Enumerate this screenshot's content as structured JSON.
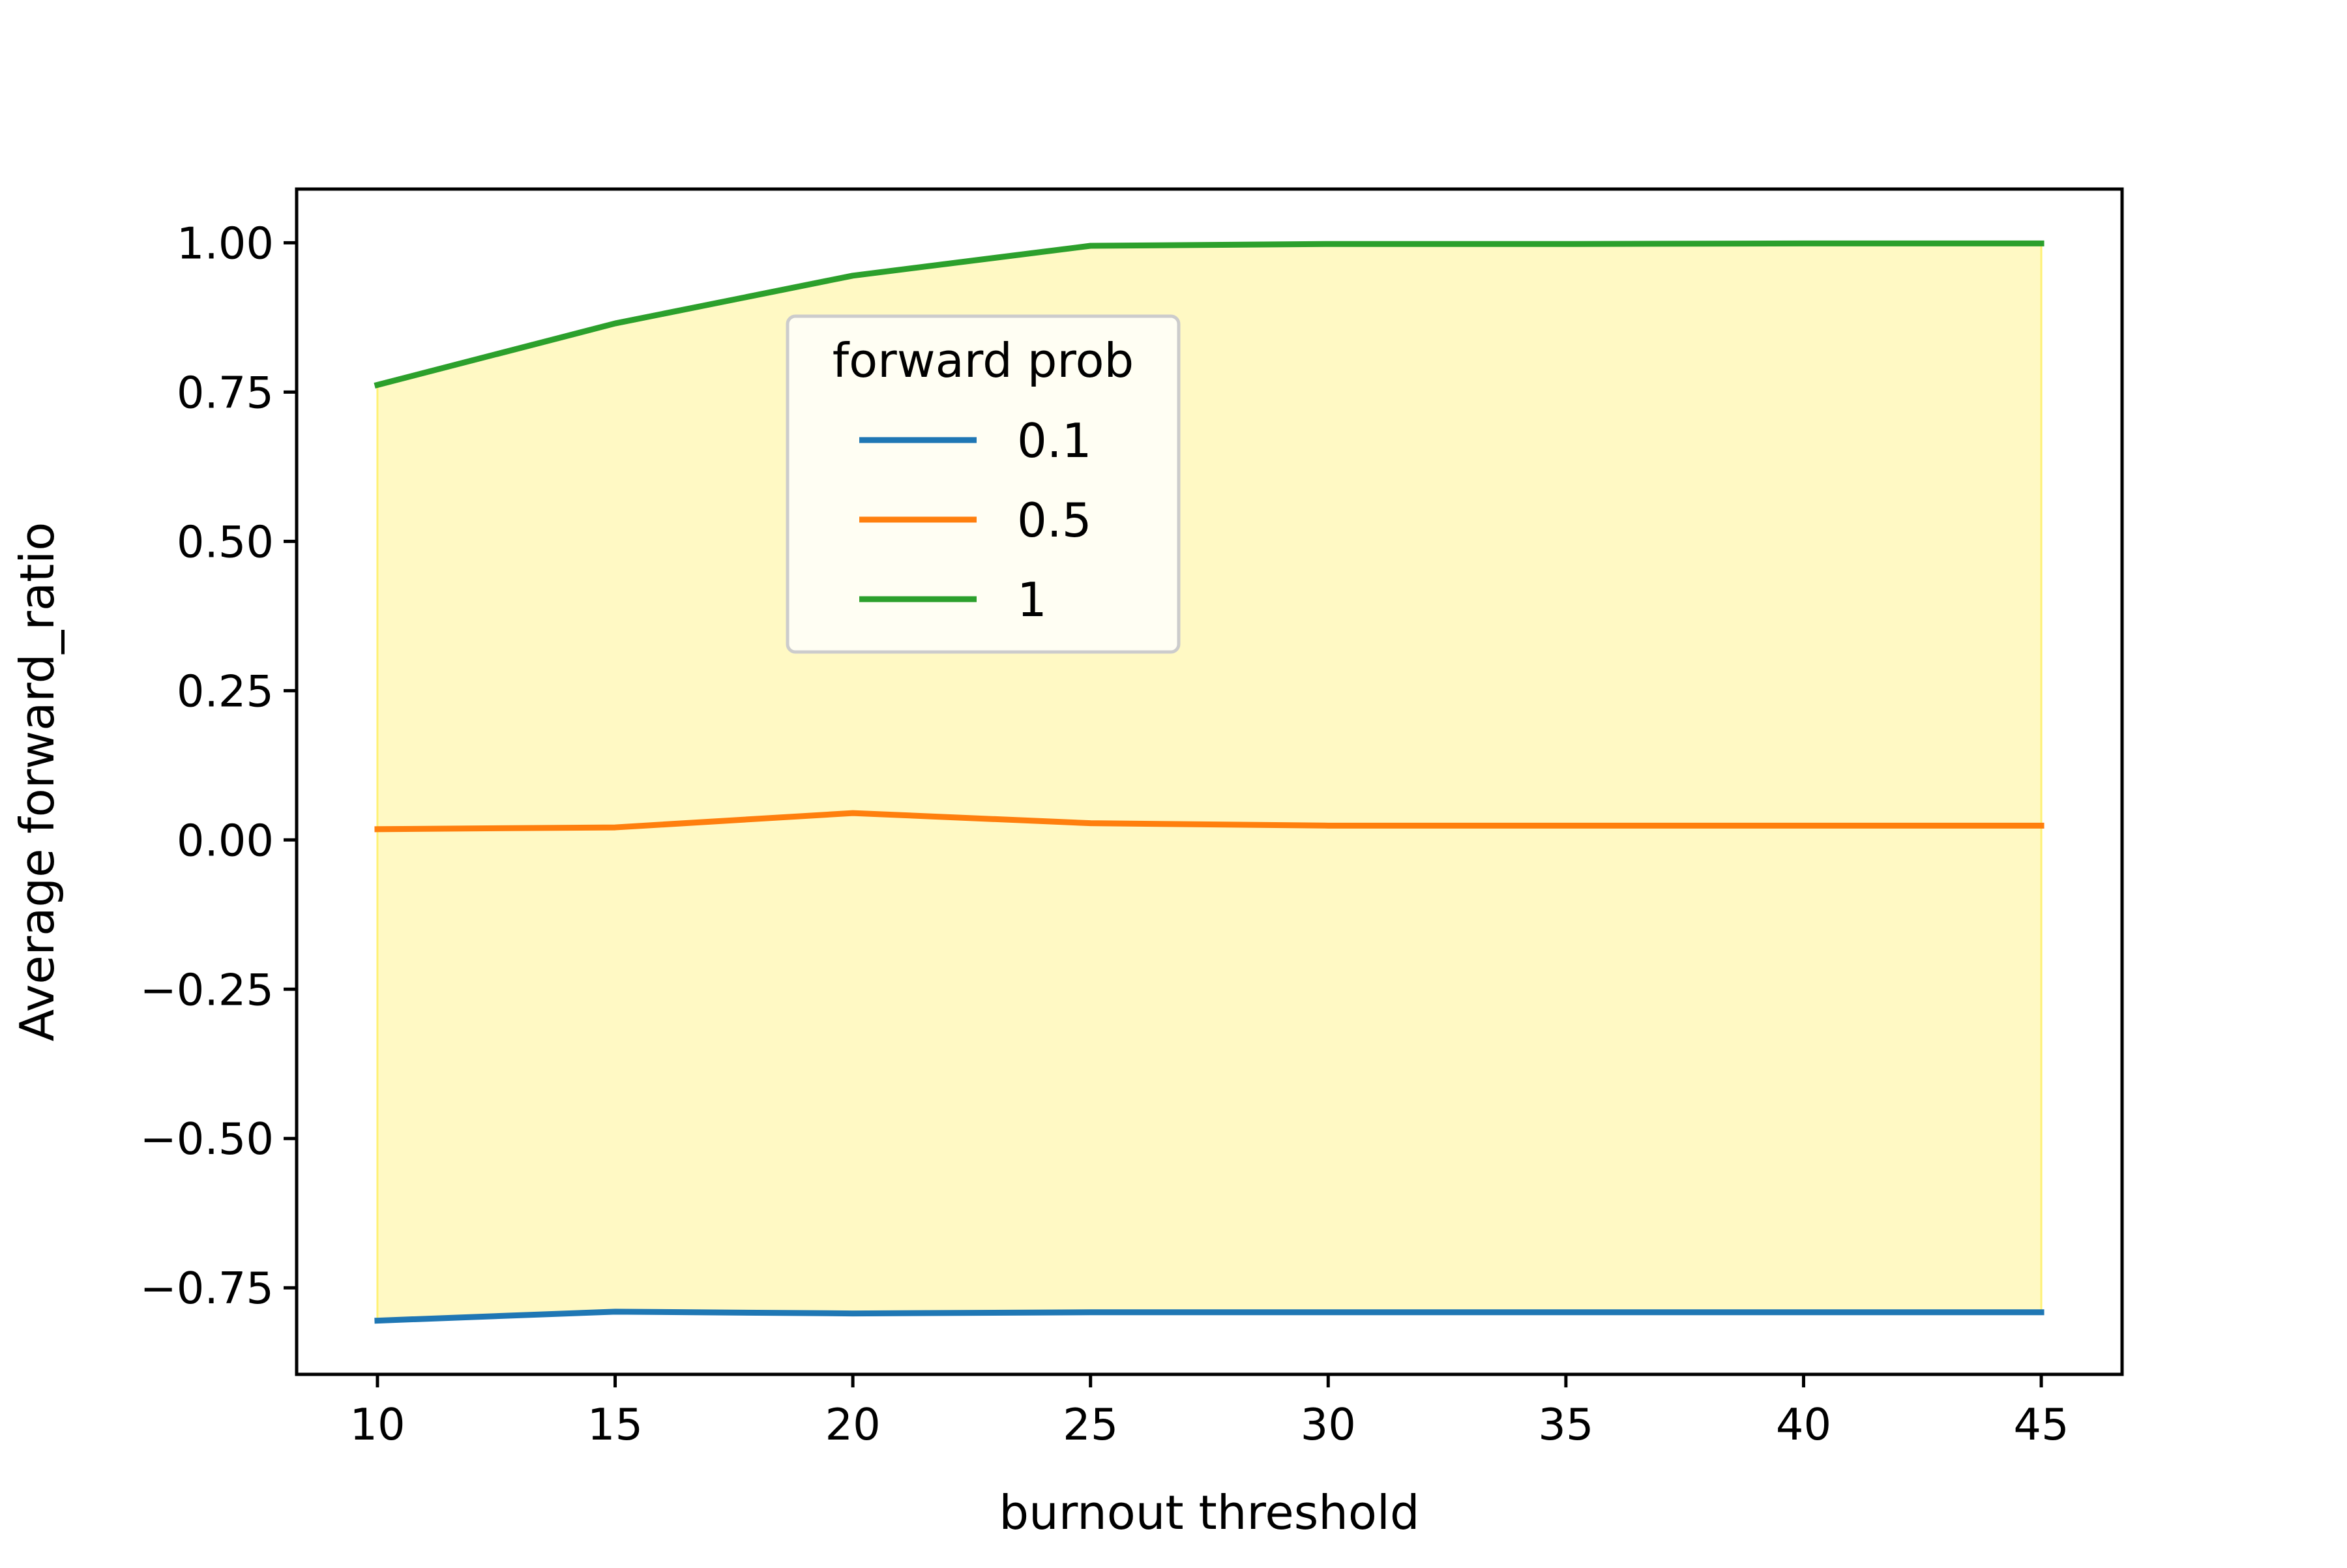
{
  "chart_data": {
    "type": "line",
    "title": "",
    "xlabel": "burnout threshold",
    "ylabel": "Average forward_ratio",
    "x": [
      10,
      15,
      20,
      25,
      30,
      35,
      40,
      45
    ],
    "xlim": [
      8.3,
      46.7
    ],
    "ylim": [
      -0.895,
      1.09
    ],
    "xticks": [
      10,
      15,
      20,
      25,
      30,
      35,
      40,
      45
    ],
    "xtick_labels": [
      "10",
      "15",
      "20",
      "25",
      "30",
      "35",
      "40",
      "45"
    ],
    "yticks": [
      -0.75,
      -0.5,
      -0.25,
      0.0,
      0.25,
      0.5,
      0.75,
      1.0
    ],
    "ytick_labels": [
      "−0.75",
      "−0.50",
      "−0.25",
      "0.00",
      "0.25",
      "0.50",
      "0.75",
      "1.00"
    ],
    "grid": false,
    "fill_between": {
      "lower_series": "0.1",
      "upper_series": "1",
      "color": "#fff9c4",
      "edge_color": "#fff176"
    },
    "legend": {
      "title": "forward prob",
      "placement": "upper center-left"
    },
    "series": [
      {
        "name": "0.1",
        "color": "#1f77b4",
        "values": [
          -0.805,
          -0.79,
          -0.793,
          -0.791,
          -0.791,
          -0.791,
          -0.791,
          -0.791
        ]
      },
      {
        "name": "0.5",
        "color": "#ff7f0e",
        "values": [
          0.018,
          0.021,
          0.045,
          0.028,
          0.024,
          0.024,
          0.024,
          0.024
        ]
      },
      {
        "name": "1",
        "color": "#2ca02c",
        "values": [
          0.762,
          0.865,
          0.945,
          0.995,
          0.998,
          0.998,
          0.999,
          0.999
        ]
      }
    ]
  }
}
